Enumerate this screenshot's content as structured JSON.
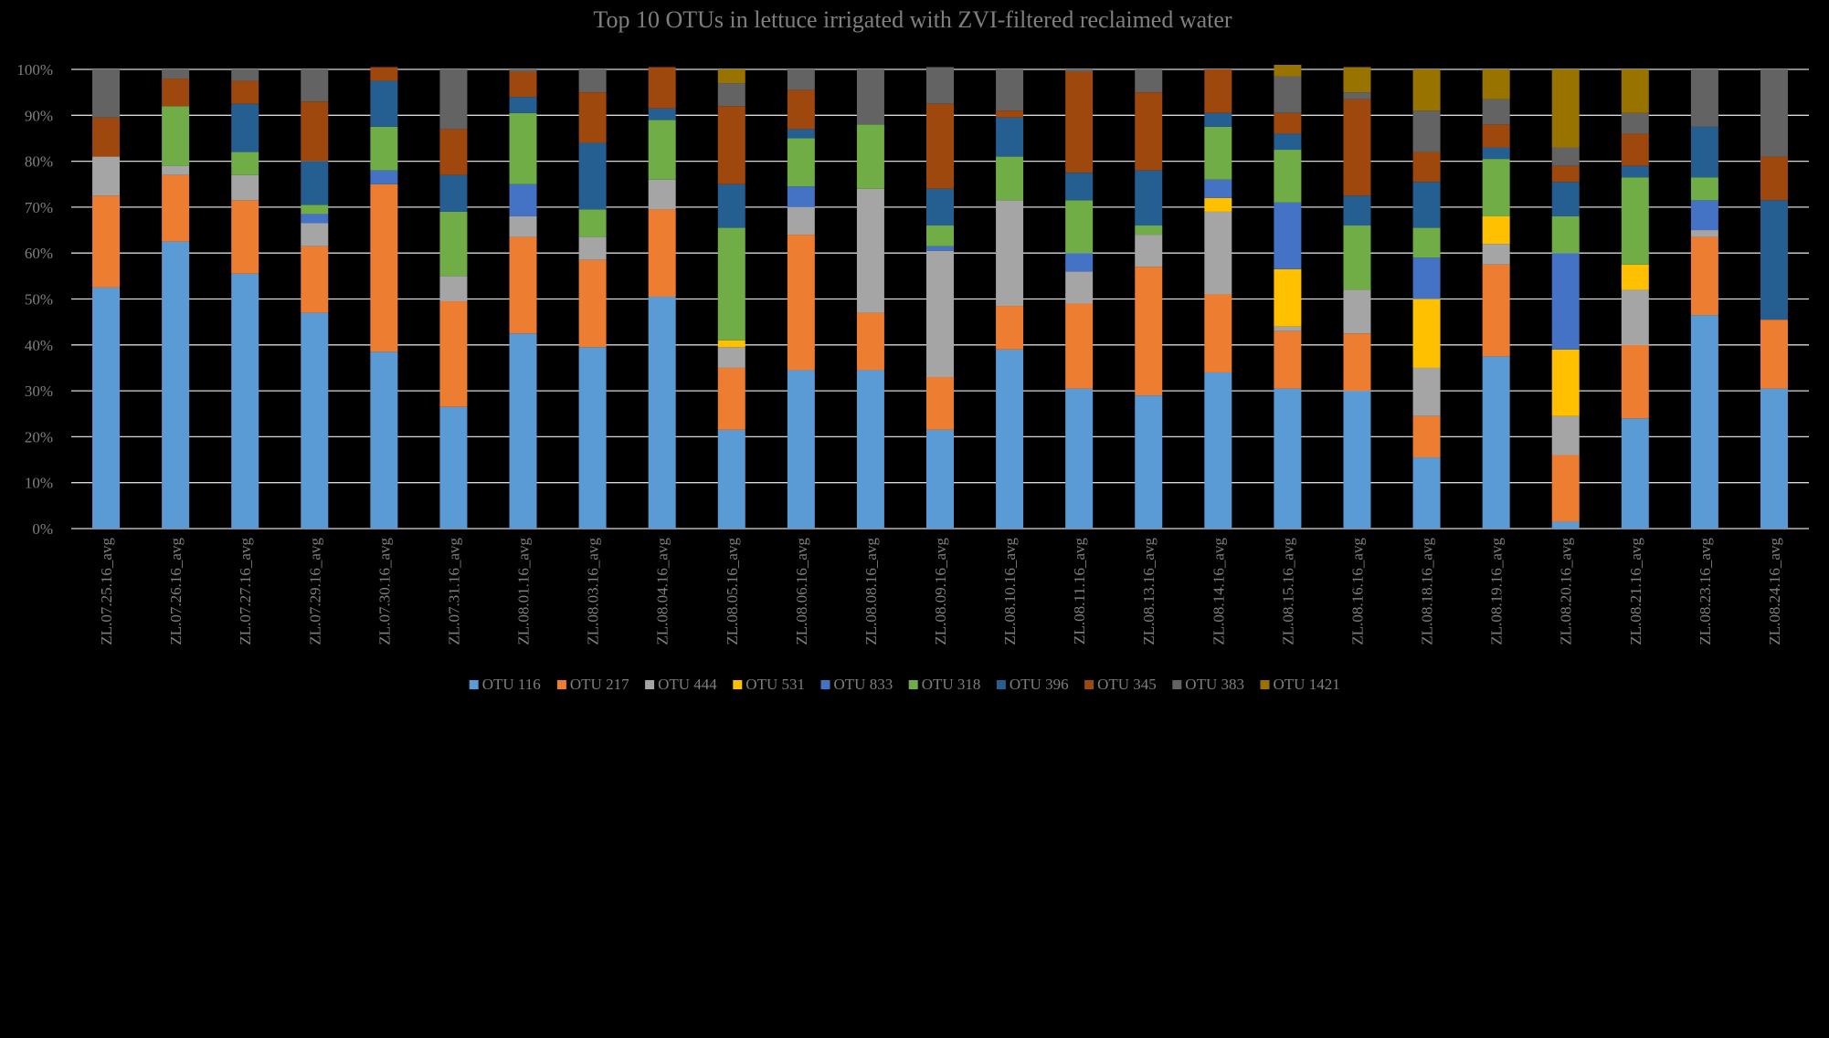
{
  "chart_data": {
    "type": "bar",
    "stacked": true,
    "title": "Top 10 OTUs in lettuce irrigated with ZVI-filtered reclaimed water",
    "xlabel": "",
    "ylabel": "",
    "ylim": [
      0,
      100
    ],
    "y_ticks": [
      "0%",
      "10%",
      "20%",
      "30%",
      "40%",
      "50%",
      "60%",
      "70%",
      "80%",
      "90%",
      "100%"
    ],
    "grid": true,
    "legend_position": "bottom",
    "categories": [
      "ZL.07.25.16_avg",
      "ZL.07.26.16_avg",
      "ZL.07.27.16_avg",
      "ZL.07.29.16_avg",
      "ZL.07.30.16_avg",
      "ZL.07.31.16_avg",
      "ZL.08.01.16_avg",
      "ZL.08.03.16_avg",
      "ZL.08.04.16_avg",
      "ZL.08.05.16_avg",
      "ZL.08.06.16_avg",
      "ZL.08.08.16_avg",
      "ZL.08.09.16_avg",
      "ZL.08.10.16_avg",
      "ZL.08.11.16_avg",
      "ZL.08.13.16_avg",
      "ZL.08.14.16_avg",
      "ZL.08.15.16_avg",
      "ZL.08.16.16_avg",
      "ZL.08.18.16_avg",
      "ZL.08.19.16_avg",
      "ZL.08.20.16_avg",
      "ZL.08.21.16_avg",
      "ZL.08.23.16_avg",
      "ZL.08.24.16_avg"
    ],
    "series": [
      {
        "name": "OTU 116",
        "color": "#5b9bd5",
        "values": [
          52.5,
          62.5,
          55.5,
          47,
          38.5,
          26.5,
          42.5,
          39.5,
          50.5,
          21.5,
          34.5,
          34.5,
          21.5,
          39,
          30.5,
          29,
          34,
          30.5,
          30,
          15.5,
          37.5,
          1.5,
          24,
          46.5,
          30.5
        ]
      },
      {
        "name": "OTU 217",
        "color": "#ed7d31",
        "values": [
          20,
          14.5,
          16,
          14.5,
          36.5,
          23,
          21,
          19,
          19,
          13.5,
          29.5,
          12.5,
          11.5,
          9.5,
          18.5,
          28,
          17,
          12.5,
          12.5,
          9,
          20,
          14.5,
          16,
          17,
          15
        ]
      },
      {
        "name": "OTU 444",
        "color": "#a5a5a5",
        "values": [
          8.5,
          2,
          5.5,
          5,
          0,
          5.5,
          4.5,
          5,
          6.5,
          4.5,
          6,
          27,
          27.5,
          23,
          7,
          7,
          18,
          1,
          9.5,
          10.5,
          4.5,
          8.5,
          12,
          1.5,
          0
        ]
      },
      {
        "name": "OTU 531",
        "color": "#ffc000",
        "values": [
          0,
          0,
          0,
          0,
          0,
          0,
          0,
          0,
          0,
          1.5,
          0,
          0,
          0,
          0,
          0,
          0,
          3,
          12.5,
          0,
          15,
          6,
          14.5,
          5.5,
          0,
          0
        ]
      },
      {
        "name": "OTU 833",
        "color": "#4472c4",
        "values": [
          0,
          0,
          0,
          2,
          3,
          0,
          7,
          0,
          0,
          0,
          4.5,
          0,
          1,
          0,
          4,
          0,
          4,
          14.5,
          0,
          9,
          0,
          21,
          0,
          6.5,
          0
        ]
      },
      {
        "name": "OTU 318",
        "color": "#70ad47",
        "values": [
          0,
          13,
          5,
          2,
          9.5,
          14,
          15.5,
          6,
          13,
          24.5,
          10.5,
          14,
          4.5,
          9.5,
          11.5,
          2,
          11.5,
          11.5,
          14,
          6.5,
          12.5,
          8,
          19,
          5,
          0
        ]
      },
      {
        "name": "OTU 396",
        "color": "#255e91",
        "values": [
          0,
          0,
          10.5,
          9.5,
          10,
          8,
          3.5,
          14.5,
          2.5,
          9.5,
          2,
          0,
          8,
          8.5,
          6,
          12,
          3,
          3.5,
          6.5,
          10,
          2.5,
          7.5,
          2.5,
          11,
          26
        ]
      },
      {
        "name": "OTU 345",
        "color": "#9e480e",
        "values": [
          8.5,
          6,
          5,
          13,
          3,
          10,
          5.5,
          11,
          9,
          17,
          8.5,
          0,
          18.5,
          1.5,
          22,
          17,
          9.5,
          4.5,
          21,
          6.5,
          5,
          3.5,
          7,
          0,
          9.5
        ]
      },
      {
        "name": "OTU 383",
        "color": "#636363",
        "values": [
          10.5,
          2,
          2.5,
          7,
          0,
          13,
          0.5,
          5,
          0,
          5,
          4.5,
          12,
          8,
          9,
          0.5,
          5,
          0,
          8,
          1.5,
          9,
          5.5,
          4,
          4.5,
          12.5,
          19
        ]
      },
      {
        "name": "OTU 1421",
        "color": "#997300",
        "values": [
          0,
          0,
          0,
          0,
          0,
          0,
          0,
          0,
          0,
          3,
          0,
          0,
          0,
          0,
          0,
          0,
          0,
          2.5,
          5.5,
          9,
          6.5,
          17,
          9.5,
          0,
          0
        ]
      }
    ]
  }
}
